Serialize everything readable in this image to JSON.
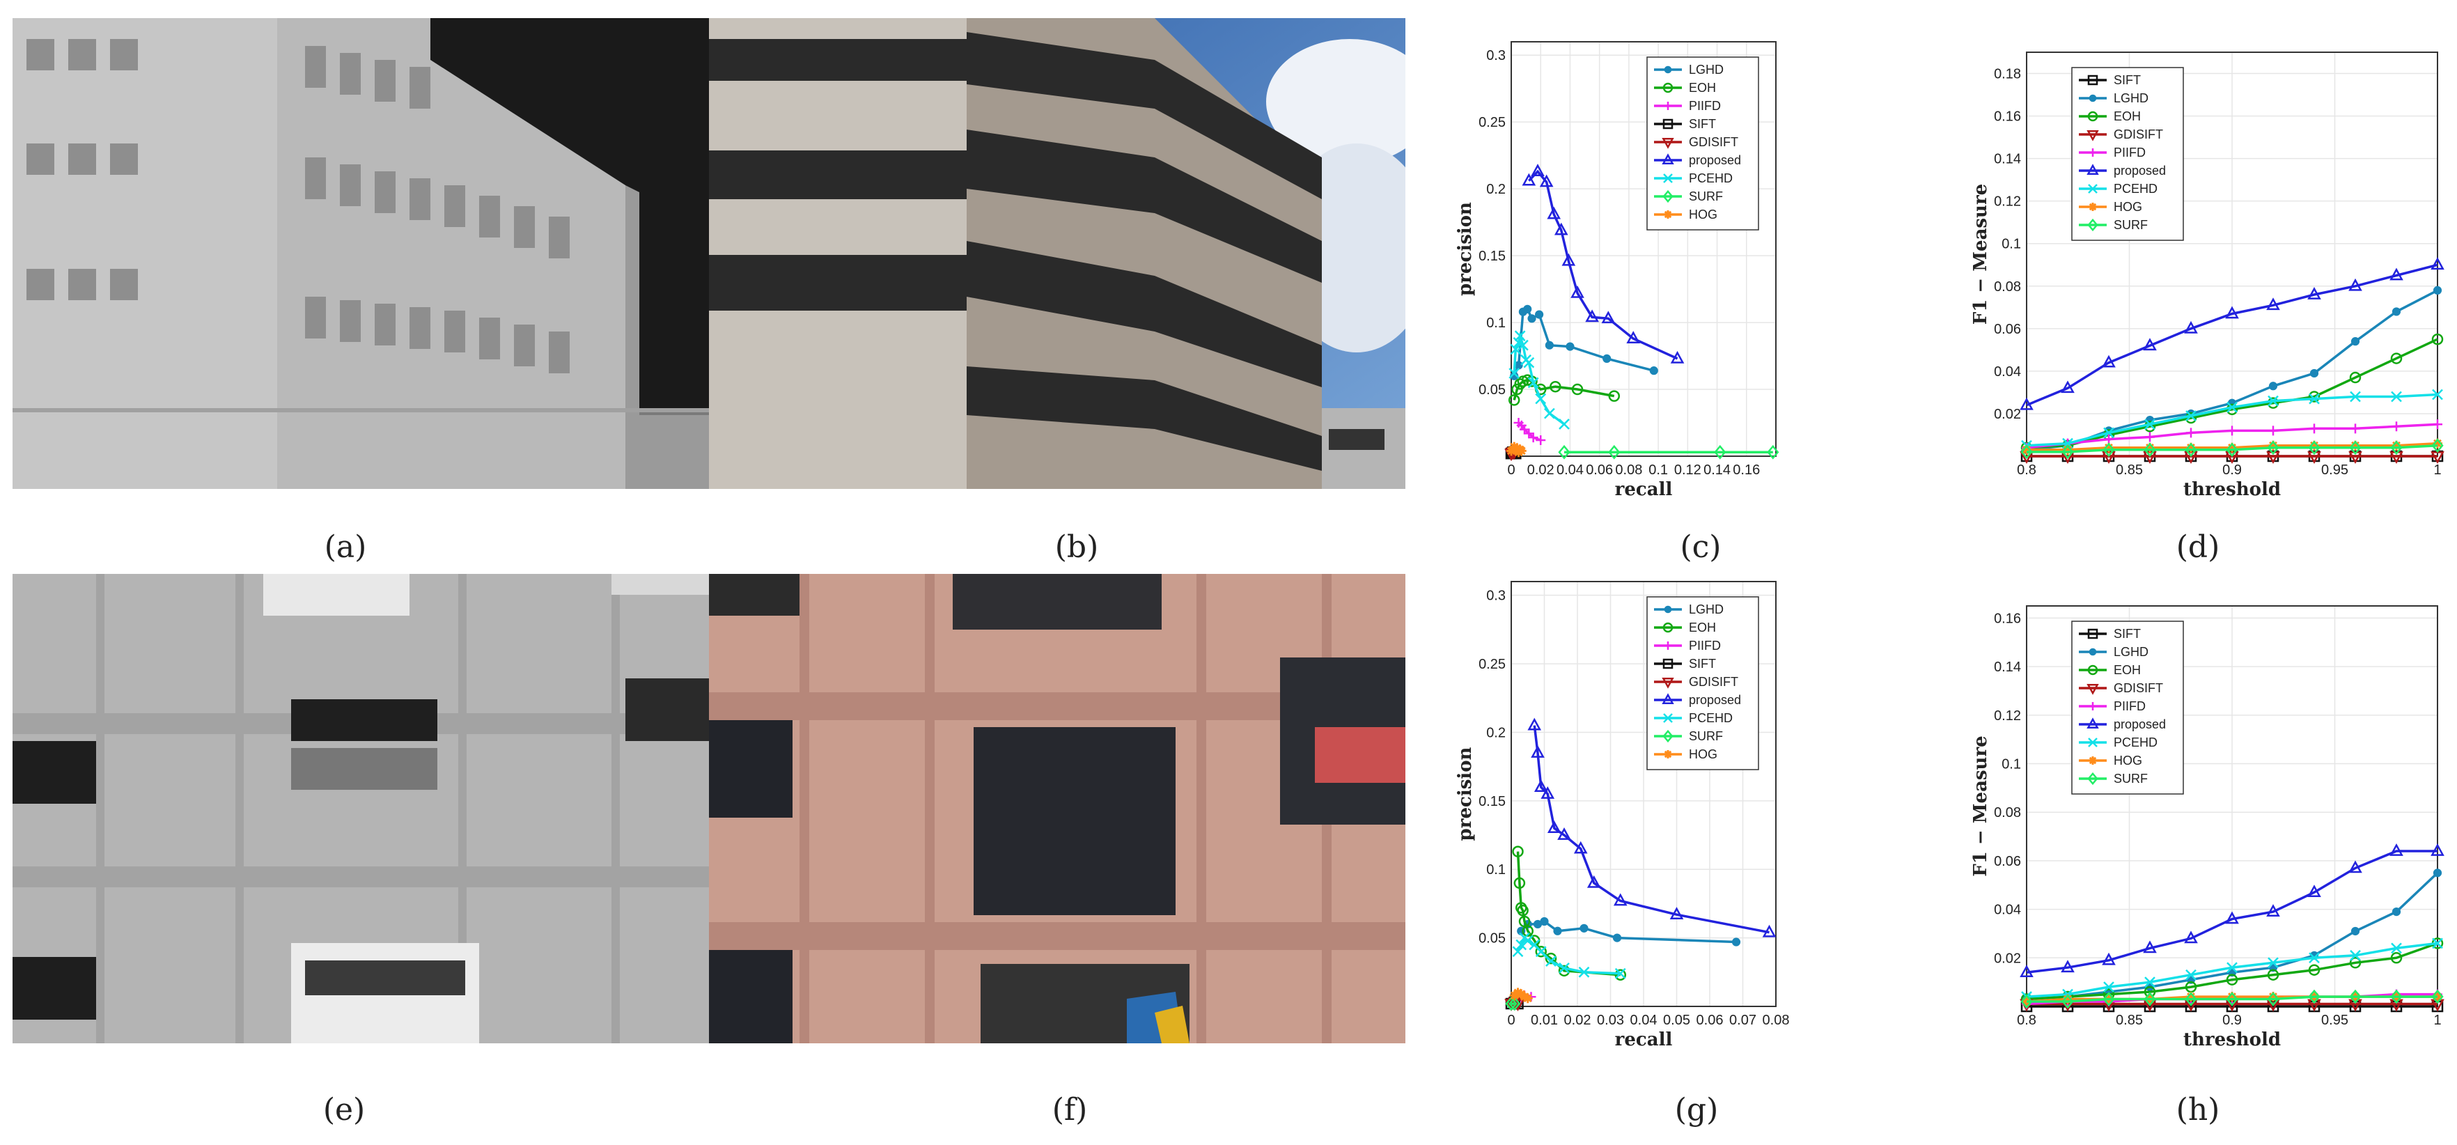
{
  "captions": [
    "(a)",
    "(b)",
    "(c)",
    "(d)",
    "(e)",
    "(f)",
    "(g)",
    "(h)"
  ],
  "colors": {
    "LGHD": "#1a86b8",
    "EOH": "#12a812",
    "PIIFD": "#ee22ee",
    "SIFT": "#111111",
    "GDISIFT": "#b01818",
    "proposed": "#2222dd",
    "PCEHD": "#14e0e8",
    "SURF": "#22ee66",
    "HOG": "#ff8c1a"
  },
  "chart_data": [
    {
      "panel": "c",
      "type": "line",
      "xlabel": "recall",
      "ylabel": "precision",
      "xlim": [
        0,
        0.18
      ],
      "ylim": [
        0,
        0.31
      ],
      "grid": true,
      "legend": "top-right",
      "xticks": [
        "0",
        "0.02",
        "0.04",
        "0.06",
        "0.08",
        "0.1",
        "0.12",
        "0.14",
        "0.16"
      ],
      "xtick_values": [
        0,
        0.02,
        0.04,
        0.06,
        0.08,
        0.1,
        0.12,
        0.14,
        0.16
      ],
      "yticks": [
        "0.05",
        "0.1",
        "0.15",
        "0.2",
        "0.25",
        "0.3"
      ],
      "ytick_values": [
        0.05,
        0.1,
        0.15,
        0.2,
        0.25,
        0.3
      ],
      "series": [
        {
          "name": "LGHD",
          "x": [
            0.002,
            0.005,
            0.008,
            0.011,
            0.014,
            0.019,
            0.026,
            0.04,
            0.065,
            0.097
          ],
          "y": [
            0.06,
            0.068,
            0.108,
            0.11,
            0.103,
            0.106,
            0.083,
            0.082,
            0.073,
            0.064
          ]
        },
        {
          "name": "EOH",
          "x": [
            0.002,
            0.004,
            0.006,
            0.008,
            0.011,
            0.014,
            0.02,
            0.03,
            0.045,
            0.07
          ],
          "y": [
            0.042,
            0.05,
            0.054,
            0.056,
            0.057,
            0.056,
            0.05,
            0.052,
            0.05,
            0.045
          ]
        },
        {
          "name": "PIIFD",
          "x": [
            0.005,
            0.007,
            0.009,
            0.012,
            0.015,
            0.02
          ],
          "y": [
            0.025,
            0.023,
            0.02,
            0.017,
            0.014,
            0.012
          ]
        },
        {
          "name": "SIFT",
          "x": [
            0,
            0.001,
            0.002,
            0.003
          ],
          "y": [
            0.002,
            0.003,
            0.003,
            0.002
          ]
        },
        {
          "name": "GDISIFT",
          "x": [
            0,
            0.001,
            0.002
          ],
          "y": [
            0.002,
            0.003,
            0.003
          ]
        },
        {
          "name": "proposed",
          "x": [
            0.012,
            0.018,
            0.024,
            0.029,
            0.034,
            0.039,
            0.045,
            0.055,
            0.066,
            0.083,
            0.113
          ],
          "y": [
            0.206,
            0.213,
            0.205,
            0.181,
            0.169,
            0.146,
            0.122,
            0.104,
            0.103,
            0.088,
            0.073
          ]
        },
        {
          "name": "PCEHD",
          "x": [
            0.002,
            0.003,
            0.005,
            0.006,
            0.008,
            0.01,
            0.012,
            0.015,
            0.02,
            0.026,
            0.036
          ],
          "y": [
            0.062,
            0.08,
            0.085,
            0.09,
            0.083,
            0.072,
            0.07,
            0.055,
            0.043,
            0.032,
            0.024
          ]
        },
        {
          "name": "SURF",
          "x": [
            0.036,
            0.07,
            0.142,
            0.178
          ],
          "y": [
            0.003,
            0.003,
            0.003,
            0.003
          ]
        },
        {
          "name": "HOG",
          "x": [
            0,
            0.002,
            0.003,
            0.004,
            0.005,
            0.006,
            0.007
          ],
          "y": [
            0.004,
            0.007,
            0.005,
            0.006,
            0.003,
            0.005,
            0.004
          ]
        }
      ]
    },
    {
      "panel": "d",
      "type": "line",
      "xlabel": "threshold",
      "ylabel": "F1 − Measure",
      "xlim": [
        0.8,
        1
      ],
      "ylim": [
        0,
        0.19
      ],
      "grid": true,
      "legend": "top-left",
      "xticks": [
        "0.8",
        "0.85",
        "0.9",
        "0.95",
        "1"
      ],
      "xtick_values": [
        0.8,
        0.85,
        0.9,
        0.95,
        1
      ],
      "yticks": [
        "0.02",
        "0.04",
        "0.06",
        "0.08",
        "0.1",
        "0.12",
        "0.14",
        "0.16",
        "0.18"
      ],
      "ytick_values": [
        0.02,
        0.04,
        0.06,
        0.08,
        0.1,
        0.12,
        0.14,
        0.16,
        0.18
      ],
      "x": [
        0.8,
        0.82,
        0.84,
        0.86,
        0.88,
        0.9,
        0.92,
        0.94,
        0.96,
        0.98,
        1.0
      ],
      "series": [
        {
          "name": "SIFT",
          "y": [
            0,
            0,
            0,
            0,
            0,
            0,
            0,
            0,
            0,
            0,
            0
          ]
        },
        {
          "name": "LGHD",
          "y": [
            0.003,
            0.005,
            0.012,
            0.017,
            0.02,
            0.025,
            0.033,
            0.039,
            0.054,
            0.068,
            0.078
          ]
        },
        {
          "name": "EOH",
          "y": [
            0.004,
            0.005,
            0.01,
            0.014,
            0.018,
            0.022,
            0.025,
            0.028,
            0.037,
            0.046,
            0.055
          ]
        },
        {
          "name": "GDISIFT",
          "y": [
            0,
            0,
            0,
            0,
            0,
            0,
            0,
            0,
            0,
            0,
            0
          ]
        },
        {
          "name": "PIIFD",
          "y": [
            0.004,
            0.006,
            0.008,
            0.009,
            0.011,
            0.012,
            0.012,
            0.013,
            0.013,
            0.014,
            0.015
          ]
        },
        {
          "name": "proposed",
          "y": [
            0.024,
            0.032,
            0.044,
            0.052,
            0.06,
            0.067,
            0.071,
            0.076,
            0.08,
            0.085,
            0.09
          ]
        },
        {
          "name": "PCEHD",
          "y": [
            0.005,
            0.006,
            0.011,
            0.015,
            0.019,
            0.023,
            0.026,
            0.027,
            0.028,
            0.028,
            0.029
          ]
        },
        {
          "name": "HOG",
          "y": [
            0.003,
            0.003,
            0.004,
            0.004,
            0.004,
            0.004,
            0.005,
            0.005,
            0.005,
            0.005,
            0.006
          ]
        },
        {
          "name": "SURF",
          "y": [
            0.002,
            0.002,
            0.003,
            0.003,
            0.003,
            0.003,
            0.004,
            0.004,
            0.004,
            0.004,
            0.005
          ]
        }
      ]
    },
    {
      "panel": "g",
      "type": "line",
      "xlabel": "recall",
      "ylabel": "precision",
      "xlim": [
        0,
        0.08
      ],
      "ylim": [
        0,
        0.31
      ],
      "grid": true,
      "legend": "top-right",
      "xticks": [
        "0",
        "0.01",
        "0.02",
        "0.03",
        "0.04",
        "0.05",
        "0.06",
        "0.07",
        "0.08"
      ],
      "xtick_values": [
        0,
        0.01,
        0.02,
        0.03,
        0.04,
        0.05,
        0.06,
        0.07,
        0.08
      ],
      "yticks": [
        "0.05",
        "0.1",
        "0.15",
        "0.2",
        "0.25",
        "0.3"
      ],
      "ytick_values": [
        0.05,
        0.1,
        0.15,
        0.2,
        0.25,
        0.3
      ],
      "series": [
        {
          "name": "LGHD",
          "x": [
            0.003,
            0.005,
            0.008,
            0.01,
            0.014,
            0.022,
            0.032,
            0.068
          ],
          "y": [
            0.055,
            0.06,
            0.06,
            0.062,
            0.055,
            0.057,
            0.05,
            0.047
          ]
        },
        {
          "name": "EOH",
          "x": [
            0.002,
            0.0025,
            0.003,
            0.0035,
            0.004,
            0.005,
            0.007,
            0.009,
            0.012,
            0.016,
            0.033
          ],
          "y": [
            0.113,
            0.09,
            0.072,
            0.07,
            0.062,
            0.055,
            0.048,
            0.04,
            0.035,
            0.026,
            0.023
          ]
        },
        {
          "name": "PIIFD",
          "x": [
            0.002,
            0.003,
            0.004,
            0.006
          ],
          "y": [
            0.006,
            0.007,
            0.008,
            0.007
          ]
        },
        {
          "name": "SIFT",
          "x": [
            0,
            0.001,
            0.002
          ],
          "y": [
            0.002,
            0.003,
            0.002
          ]
        },
        {
          "name": "GDISIFT",
          "x": [
            0,
            0.001,
            0.002
          ],
          "y": [
            0.002,
            0.003,
            0.002
          ]
        },
        {
          "name": "proposed",
          "x": [
            0.007,
            0.008,
            0.009,
            0.011,
            0.013,
            0.016,
            0.021,
            0.025,
            0.033,
            0.05,
            0.078
          ],
          "y": [
            0.205,
            0.185,
            0.16,
            0.155,
            0.13,
            0.125,
            0.115,
            0.09,
            0.077,
            0.067,
            0.054
          ]
        },
        {
          "name": "PCEHD",
          "x": [
            0.002,
            0.003,
            0.004,
            0.005,
            0.007,
            0.009,
            0.012,
            0.016,
            0.022,
            0.033
          ],
          "y": [
            0.04,
            0.045,
            0.05,
            0.048,
            0.045,
            0.04,
            0.033,
            0.028,
            0.025,
            0.024
          ]
        },
        {
          "name": "SURF",
          "x": [
            0,
            0.001
          ],
          "y": [
            0.002,
            0.002
          ]
        },
        {
          "name": "HOG",
          "x": [
            0.001,
            0.002,
            0.003,
            0.004,
            0.005
          ],
          "y": [
            0.008,
            0.01,
            0.009,
            0.007,
            0.006
          ]
        }
      ]
    },
    {
      "panel": "h",
      "type": "line",
      "xlabel": "threshold",
      "ylabel": "F1 − Measure",
      "xlim": [
        0.8,
        1
      ],
      "ylim": [
        0,
        0.165
      ],
      "grid": true,
      "legend": "top-left",
      "xticks": [
        "0.8",
        "0.85",
        "0.9",
        "0.95",
        "1"
      ],
      "xtick_values": [
        0.8,
        0.85,
        0.9,
        0.95,
        1
      ],
      "yticks": [
        "0.02",
        "0.04",
        "0.06",
        "0.08",
        "0.1",
        "0.12",
        "0.14",
        "0.16"
      ],
      "ytick_values": [
        0.02,
        0.04,
        0.06,
        0.08,
        0.1,
        0.12,
        0.14,
        0.16
      ],
      "x": [
        0.8,
        0.82,
        0.84,
        0.86,
        0.88,
        0.9,
        0.92,
        0.94,
        0.96,
        0.98,
        1.0
      ],
      "series": [
        {
          "name": "SIFT",
          "y": [
            0,
            0,
            0,
            0,
            0,
            0,
            0,
            0,
            0,
            0,
            0
          ]
        },
        {
          "name": "LGHD",
          "y": [
            0.003,
            0.004,
            0.006,
            0.008,
            0.011,
            0.014,
            0.016,
            0.021,
            0.031,
            0.039,
            0.055
          ]
        },
        {
          "name": "EOH",
          "y": [
            0.003,
            0.004,
            0.005,
            0.006,
            0.008,
            0.011,
            0.013,
            0.015,
            0.018,
            0.02,
            0.026
          ]
        },
        {
          "name": "GDISIFT",
          "y": [
            0.001,
            0.001,
            0.001,
            0.001,
            0.001,
            0.001,
            0.001,
            0.001,
            0.001,
            0.001,
            0.001
          ]
        },
        {
          "name": "PIIFD",
          "y": [
            0.001,
            0.002,
            0.002,
            0.003,
            0.003,
            0.003,
            0.004,
            0.004,
            0.004,
            0.005,
            0.005
          ]
        },
        {
          "name": "proposed",
          "y": [
            0.014,
            0.016,
            0.019,
            0.024,
            0.028,
            0.036,
            0.039,
            0.047,
            0.057,
            0.064,
            0.064
          ]
        },
        {
          "name": "PCEHD",
          "y": [
            0.004,
            0.005,
            0.008,
            0.01,
            0.013,
            0.016,
            0.018,
            0.02,
            0.021,
            0.024,
            0.026
          ]
        },
        {
          "name": "HOG",
          "y": [
            0.002,
            0.003,
            0.003,
            0.003,
            0.004,
            0.004,
            0.004,
            0.004,
            0.004,
            0.004,
            0.004
          ]
        },
        {
          "name": "SURF",
          "y": [
            0.002,
            0.002,
            0.003,
            0.003,
            0.003,
            0.003,
            0.003,
            0.004,
            0.004,
            0.004,
            0.004
          ]
        }
      ]
    }
  ]
}
